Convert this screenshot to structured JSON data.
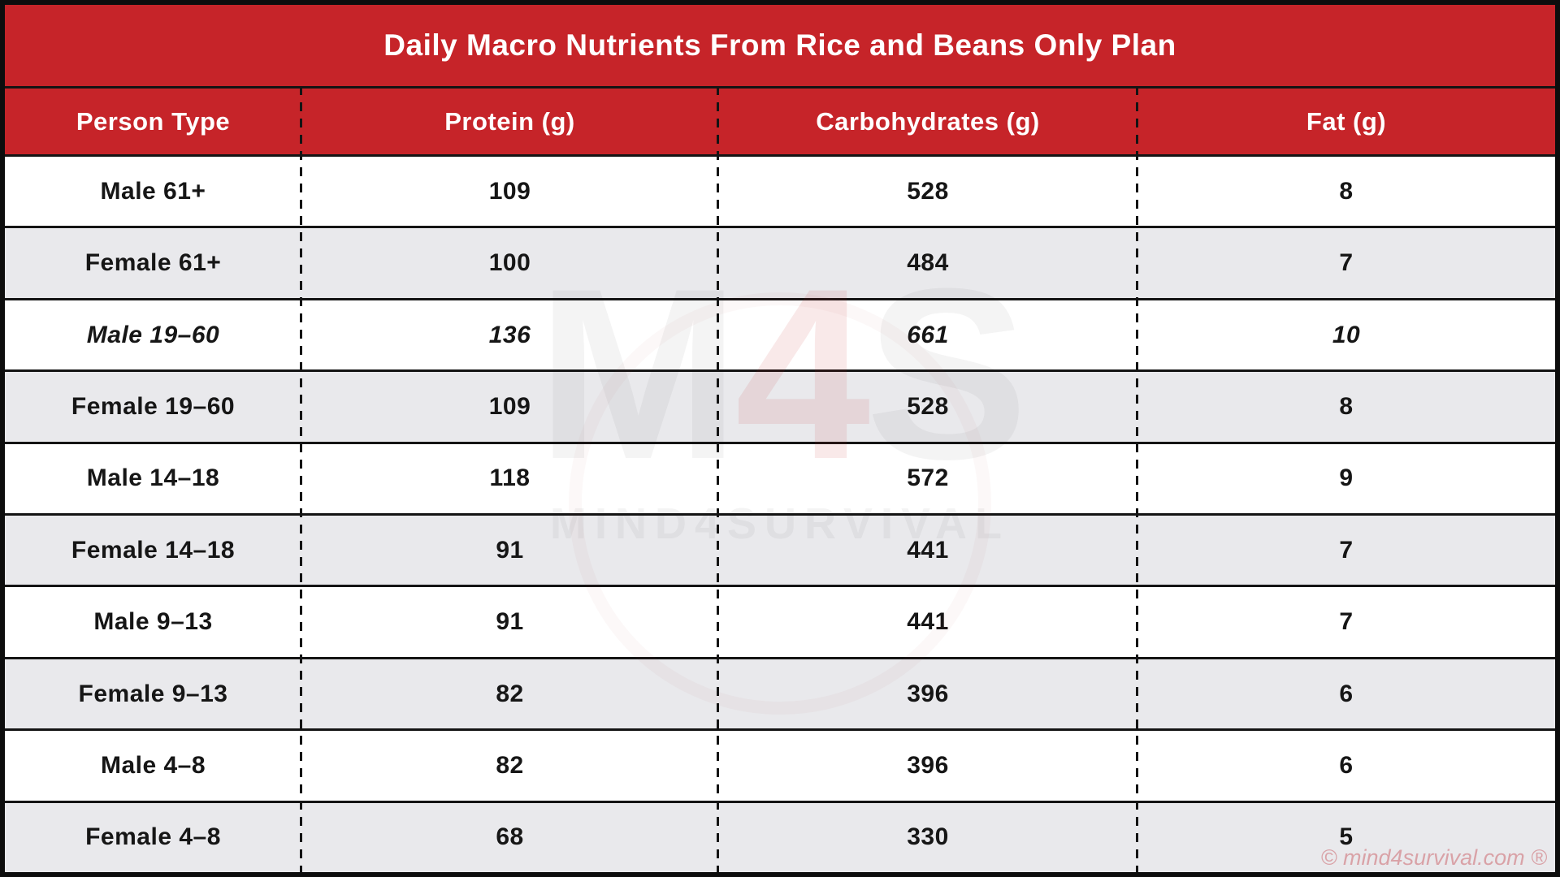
{
  "title": "Daily Macro Nutrients From Rice and Beans Only Plan",
  "table": {
    "columns": [
      "Person Type",
      "Protein (g)",
      "Carbohydrates (g)",
      "Fat (g)"
    ],
    "rows": [
      {
        "person": "Male 61+",
        "protein": "109",
        "carbs": "528",
        "fat": "8"
      },
      {
        "person": "Female 61+",
        "protein": "100",
        "carbs": "484",
        "fat": "7"
      },
      {
        "person": "Male 19–60",
        "protein": "136",
        "carbs": "661",
        "fat": "10",
        "emphasis": true
      },
      {
        "person": "Female 19–60",
        "protein": "109",
        "carbs": "528",
        "fat": "8"
      },
      {
        "person": "Male 14–18",
        "protein": "118",
        "carbs": "572",
        "fat": "9"
      },
      {
        "person": "Female 14–18",
        "protein": "91",
        "carbs": "441",
        "fat": "7"
      },
      {
        "person": "Male 9–13",
        "protein": "91",
        "carbs": "441",
        "fat": "7"
      },
      {
        "person": "Female 9–13",
        "protein": "82",
        "carbs": "396",
        "fat": "6"
      },
      {
        "person": "Male 4–8",
        "protein": "82",
        "carbs": "396",
        "fat": "6"
      },
      {
        "person": "Female 4–8",
        "protein": "68",
        "carbs": "330",
        "fat": "5"
      }
    ]
  },
  "watermark": {
    "letters": [
      "M",
      "4",
      "S"
    ],
    "subtext": "MIND4SURVIVAL"
  },
  "footer": {
    "credit": "© mind4survival.com ®"
  },
  "colors": {
    "brand_red": "#c62429",
    "row_alt_gray": "#e9e9ec",
    "line_black": "#141414",
    "credit_pink": "#d9a2a7"
  },
  "chart_data": {
    "type": "table",
    "title": "Daily Macro Nutrients From Rice and Beans Only Plan",
    "columns": [
      "Person Type",
      "Protein (g)",
      "Carbohydrates (g)",
      "Fat (g)"
    ],
    "rows": [
      [
        "Male 61+",
        109,
        528,
        8
      ],
      [
        "Female 61+",
        100,
        484,
        7
      ],
      [
        "Male 19–60",
        136,
        661,
        10
      ],
      [
        "Female 19–60",
        109,
        528,
        8
      ],
      [
        "Male 14–18",
        118,
        572,
        9
      ],
      [
        "Female 14–18",
        91,
        441,
        7
      ],
      [
        "Male 9–13",
        91,
        441,
        7
      ],
      [
        "Female 9–13",
        82,
        396,
        6
      ],
      [
        "Male 4–8",
        82,
        396,
        6
      ],
      [
        "Female 4–8",
        68,
        330,
        5
      ]
    ],
    "notes": "Row for Male 19–60 is rendered in italics in the source image"
  }
}
